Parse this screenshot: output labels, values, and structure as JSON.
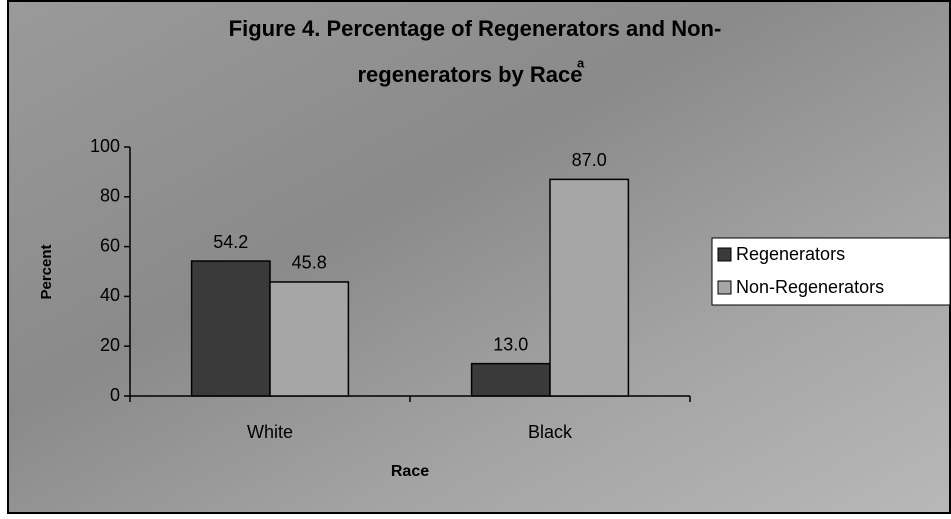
{
  "chart_data": {
    "type": "bar",
    "title": [
      "Figure 4.  Percentage of Regenerators and Non-",
      "regenerators by Race"
    ],
    "title_note": "a",
    "x_label": "Race",
    "y_label": "Percent",
    "categories": [
      "White",
      "Black"
    ],
    "series": [
      {
        "name": "Regenerators",
        "color": "#3a3a3a",
        "values": [
          54.2,
          13.0
        ],
        "value_labels": [
          "54.2",
          "13.0"
        ]
      },
      {
        "name": "Non-Regenerators",
        "color": "#a6a6a6",
        "values": [
          45.8,
          87.0
        ],
        "value_labels": [
          "45.8",
          "87.0"
        ]
      }
    ],
    "ylim": [
      0,
      100
    ],
    "yticks": [
      0,
      20,
      40,
      60,
      80,
      100
    ],
    "legend": "right"
  }
}
